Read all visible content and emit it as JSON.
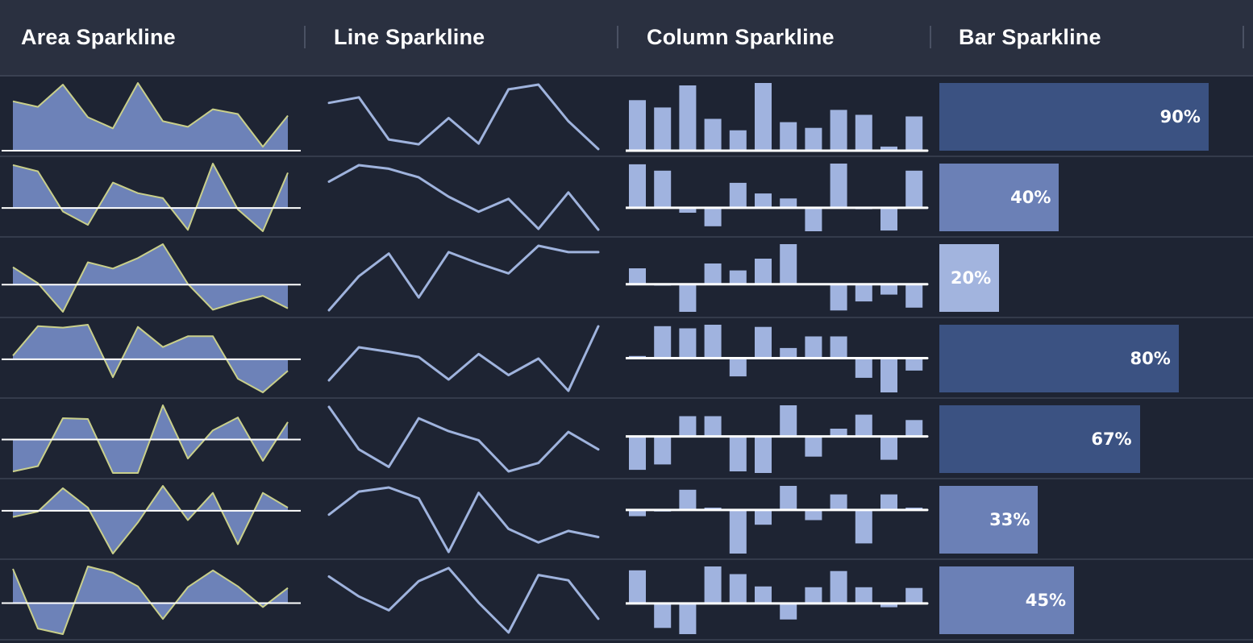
{
  "headers": {
    "area": "Area Sparkline",
    "line": "Line Sparkline",
    "column": "Column Sparkline",
    "bar": "Bar Sparkline"
  },
  "colors": {
    "area_fill": "#6d82b8",
    "area_stroke": "#c9cf8a",
    "line": "#9fb3dd",
    "column": "#a0b3df",
    "axis": "#ffffff",
    "bar_high": "#3b5282",
    "bar_mid": "#6b80b6",
    "bar_low": "#a2b4de"
  },
  "chart_data": {
    "type": "table",
    "rows": [
      {
        "area": [
          6.2,
          5.5,
          8.3,
          4.2,
          2.8,
          8.5,
          3.7,
          3.0,
          5.2,
          4.6,
          0.5,
          4.4
        ],
        "line": [
          6.2,
          6.9,
          1.6,
          1.0,
          4.3,
          1.1,
          7.9,
          8.5,
          3.9,
          0.4
        ],
        "column": [
          6.2,
          5.3,
          8.0,
          3.9,
          2.5,
          8.3,
          3.5,
          2.8,
          5.0,
          4.4,
          0.5,
          4.2
        ],
        "bar": 90,
        "bar_label": "90%"
      },
      {
        "area": [
          6.1,
          5.2,
          -0.5,
          -2.4,
          3.6,
          2.1,
          1.4,
          -3.1,
          6.3,
          -0.2,
          -3.3,
          5.0
        ],
        "line": [
          3.2,
          5.5,
          5.0,
          3.8,
          1.1,
          -1.0,
          0.8,
          -3.4,
          1.7,
          -3.5
        ],
        "column": [
          6.1,
          5.2,
          -0.7,
          -2.6,
          3.5,
          2.0,
          1.3,
          -3.3,
          6.2,
          -0.2,
          -3.2,
          5.2
        ],
        "bar": 40,
        "bar_label": "40%"
      },
      {
        "area": [
          2.5,
          0.2,
          -3.9,
          3.2,
          2.3,
          3.8,
          5.8,
          0.1,
          -3.6,
          -2.5,
          -1.6,
          -3.4
        ],
        "line": [
          -3.5,
          1.3,
          4.5,
          -1.7,
          4.7,
          3.1,
          1.7,
          5.6,
          4.7,
          4.7
        ],
        "column": [
          2.3,
          -0.2,
          -4.0,
          3.0,
          2.0,
          3.7,
          5.8,
          0.1,
          -3.8,
          -2.5,
          -1.5,
          -3.4
        ],
        "bar": 20,
        "bar_label": "20%"
      },
      {
        "area": [
          0.5,
          4.6,
          4.4,
          4.8,
          -2.5,
          4.5,
          1.7,
          3.2,
          3.2,
          -2.7,
          -4.6,
          -1.6
        ],
        "line": [
          -2.7,
          1.7,
          1.1,
          0.4,
          -2.6,
          0.8,
          -2.0,
          0.2,
          -4.1,
          4.5
        ],
        "column": [
          0.3,
          4.4,
          4.1,
          4.6,
          -2.5,
          4.3,
          1.4,
          3.0,
          3.0,
          -2.7,
          -4.7,
          -1.7
        ],
        "bar": 80,
        "bar_label": "80%"
      },
      {
        "area": [
          -4.2,
          -3.5,
          2.8,
          2.7,
          -4.4,
          -4.4,
          4.5,
          -2.5,
          1.2,
          2.9,
          -2.8,
          2.3
        ],
        "line": [
          3.9,
          -1.7,
          -4.0,
          2.4,
          0.7,
          -0.5,
          -4.6,
          -3.5,
          0.6,
          -1.7
        ],
        "column": [
          -4.3,
          -3.6,
          2.6,
          2.6,
          -4.5,
          -4.7,
          4.0,
          -2.6,
          1.0,
          2.8,
          -3.0,
          2.1
        ],
        "bar": 67,
        "bar_label": "67%"
      },
      {
        "area": [
          -0.8,
          -0.1,
          2.9,
          0.4,
          -5.5,
          -1.5,
          3.2,
          -1.2,
          2.3,
          -4.3,
          2.3,
          0.4
        ],
        "line": [
          -0.9,
          2.5,
          3.1,
          1.5,
          -6.4,
          2.3,
          -3.0,
          -5.0,
          -3.3,
          -4.2
        ],
        "column": [
          -0.8,
          -0.2,
          2.6,
          0.3,
          -5.6,
          -1.9,
          3.1,
          -1.3,
          2.0,
          -4.3,
          2.0,
          0.3
        ],
        "bar": 33,
        "bar_label": "33%"
      },
      {
        "area": [
          4.3,
          -3.2,
          -3.9,
          4.6,
          3.8,
          2.1,
          -2.0,
          2.0,
          4.1,
          2.1,
          -0.5,
          1.9
        ],
        "line": [
          3.6,
          1.0,
          -0.8,
          3.0,
          4.7,
          0.2,
          -3.7,
          3.8,
          3.1,
          -1.9
        ],
        "column": [
          4.3,
          -3.2,
          -4.0,
          4.8,
          3.8,
          2.2,
          -2.1,
          2.1,
          4.2,
          2.1,
          -0.5,
          2.0
        ],
        "bar": 45,
        "bar_label": "45%"
      }
    ]
  }
}
